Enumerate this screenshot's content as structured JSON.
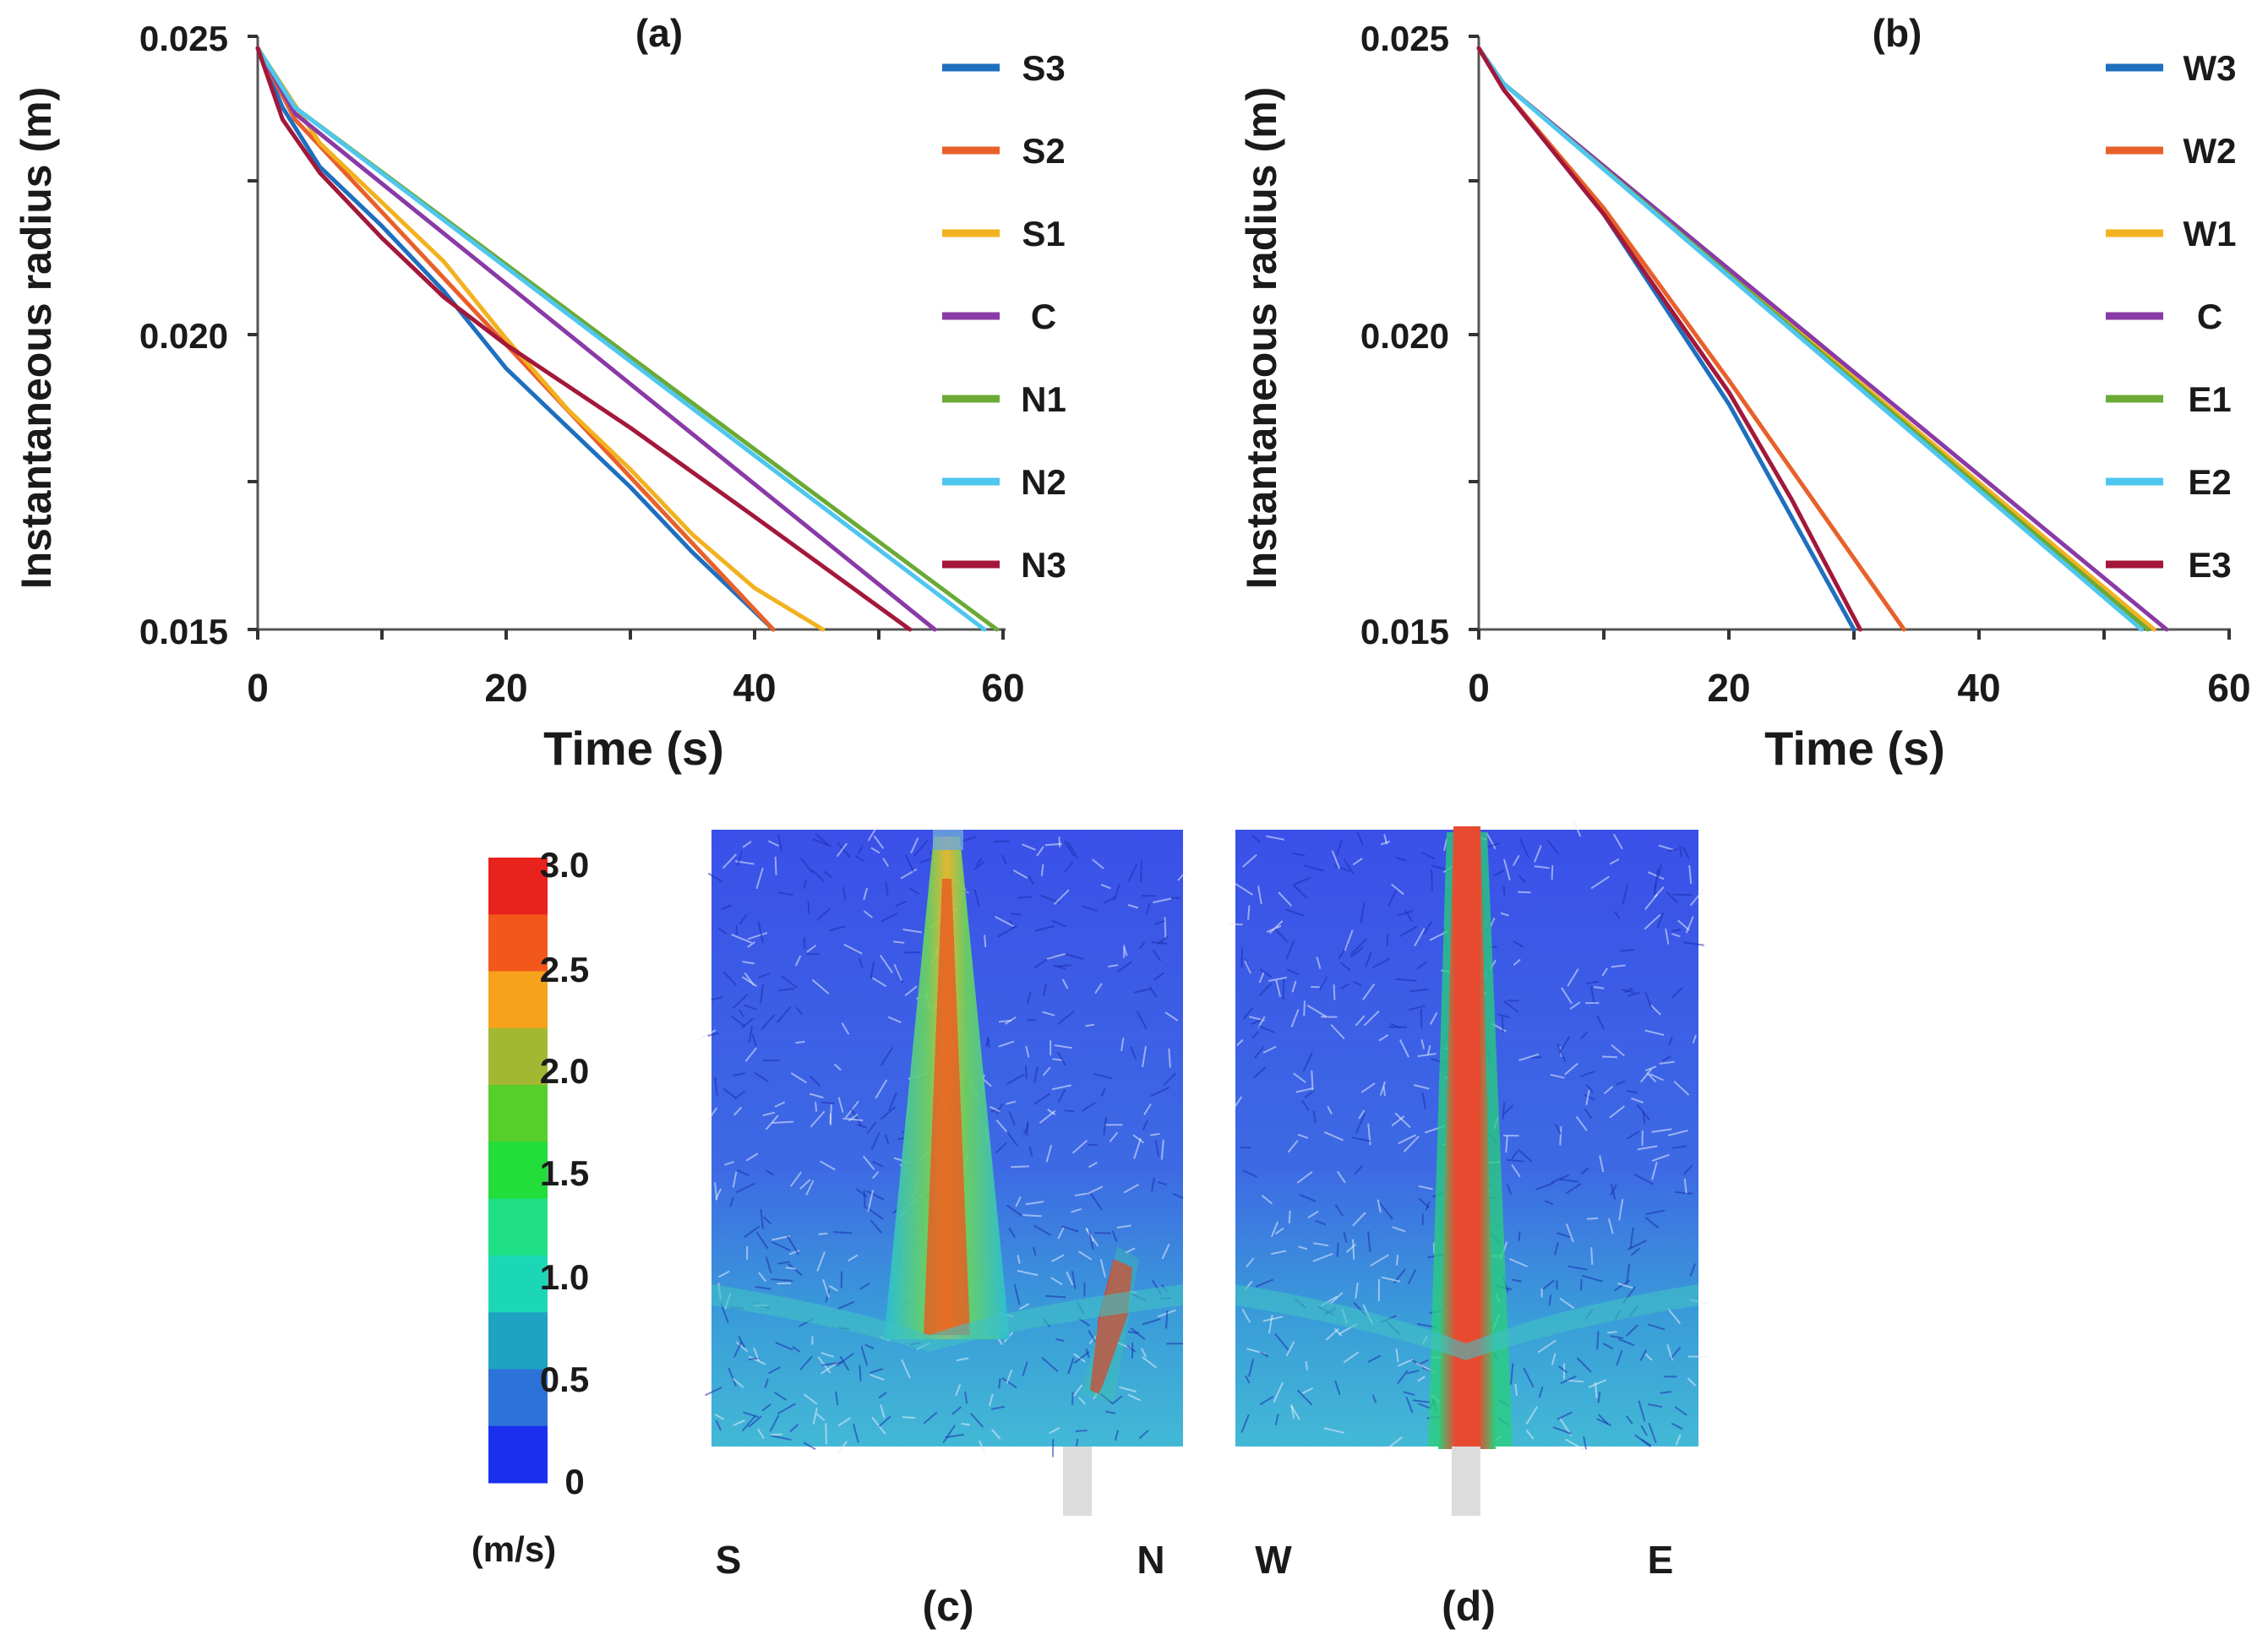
{
  "chart_data": [
    {
      "type": "line",
      "panel_label": "(a)",
      "xlabel": "Time (s)",
      "ylabel": "Instantaneous radius (m)",
      "xlim": [
        0,
        60
      ],
      "ylim": [
        0.015,
        0.025
      ],
      "xticks": [
        "0",
        "20",
        "40",
        "60"
      ],
      "yticks": [
        "0.015",
        "0.020",
        "0.025"
      ],
      "legend_position": "right",
      "series": [
        {
          "name": "S3",
          "color": "#1f6fbf",
          "x": [
            0,
            2,
            5,
            10,
            15,
            20,
            25,
            30,
            35,
            41.5
          ],
          "y": [
            0.0248,
            0.0238,
            0.0228,
            0.0218,
            0.0207,
            0.0194,
            0.0184,
            0.0174,
            0.0163,
            0.015
          ]
        },
        {
          "name": "S2",
          "color": "#e8602a",
          "x": [
            0,
            3,
            41.5
          ],
          "y": [
            0.0248,
            0.0236,
            0.015
          ]
        },
        {
          "name": "S1",
          "color": "#f2b21f",
          "x": [
            0,
            5,
            10,
            15,
            20,
            25,
            30,
            35,
            40,
            45.5
          ],
          "y": [
            0.0248,
            0.0232,
            0.0222,
            0.0212,
            0.0199,
            0.0187,
            0.0177,
            0.0166,
            0.0157,
            0.015
          ]
        },
        {
          "name": "C",
          "color": "#8a3aa6",
          "x": [
            0,
            3,
            54.5
          ],
          "y": [
            0.0248,
            0.0237,
            0.015
          ]
        },
        {
          "name": "N1",
          "color": "#6aaa35",
          "x": [
            0,
            3,
            59.5
          ],
          "y": [
            0.0248,
            0.0238,
            0.015
          ]
        },
        {
          "name": "N2",
          "color": "#4fc6ee",
          "x": [
            0,
            3,
            58.5
          ],
          "y": [
            0.0248,
            0.0238,
            0.015
          ]
        },
        {
          "name": "N3",
          "color": "#a3183a",
          "x": [
            0,
            2,
            5,
            10,
            15,
            20,
            30,
            40,
            52.5
          ],
          "y": [
            0.0248,
            0.0236,
            0.0227,
            0.0216,
            0.0206,
            0.0198,
            0.0184,
            0.0169,
            0.015
          ]
        }
      ]
    },
    {
      "type": "line",
      "panel_label": "(b)",
      "xlabel": "Time (s)",
      "ylabel": "Instantaneous radius (m)",
      "xlim": [
        0,
        60
      ],
      "ylim": [
        0.015,
        0.025
      ],
      "xticks": [
        "0",
        "20",
        "40",
        "60"
      ],
      "yticks": [
        "0.015",
        "0.020",
        "0.025"
      ],
      "legend_position": "right",
      "series": [
        {
          "name": "W3",
          "color": "#1f6fbf",
          "x": [
            0,
            2,
            10,
            20,
            30
          ],
          "y": [
            0.0248,
            0.0241,
            0.022,
            0.0188,
            0.015
          ]
        },
        {
          "name": "W2",
          "color": "#e8602a",
          "x": [
            0,
            2,
            10,
            20,
            25,
            34
          ],
          "y": [
            0.0248,
            0.0241,
            0.0221,
            0.0192,
            0.0177,
            0.015
          ]
        },
        {
          "name": "W1",
          "color": "#f2b21f",
          "x": [
            0,
            2,
            54
          ],
          "y": [
            0.0248,
            0.0242,
            0.015
          ]
        },
        {
          "name": "C",
          "color": "#8a3aa6",
          "x": [
            0,
            2,
            55
          ],
          "y": [
            0.0248,
            0.0242,
            0.015
          ]
        },
        {
          "name": "E1",
          "color": "#6aaa35",
          "x": [
            0,
            2,
            53.5
          ],
          "y": [
            0.0248,
            0.0242,
            0.015
          ]
        },
        {
          "name": "E2",
          "color": "#4fc6ee",
          "x": [
            0,
            2,
            53
          ],
          "y": [
            0.0248,
            0.0242,
            0.015
          ]
        },
        {
          "name": "E3",
          "color": "#a3183a",
          "x": [
            0,
            2,
            10,
            20,
            25,
            30.5
          ],
          "y": [
            0.0248,
            0.0241,
            0.022,
            0.019,
            0.0172,
            0.015
          ]
        }
      ]
    },
    {
      "type": "heatmap",
      "panel_label": "(c)",
      "left_label": "S",
      "right_label": "N"
    },
    {
      "type": "heatmap",
      "panel_label": "(d)",
      "left_label": "W",
      "right_label": "E"
    }
  ],
  "colorbar": {
    "unit": "(m/s)",
    "ticks": [
      "3.0",
      "2.5",
      "2.0",
      "1.5",
      "1.0",
      "0.5",
      "0"
    ],
    "colors": [
      "#e8221c",
      "#f2581c",
      "#f7a21c",
      "#a3b832",
      "#56cf2a",
      "#22dd3a",
      "#1fe084",
      "#1cd7b6",
      "#1fa3c3",
      "#2c73d9",
      "#1a2ff0"
    ]
  }
}
